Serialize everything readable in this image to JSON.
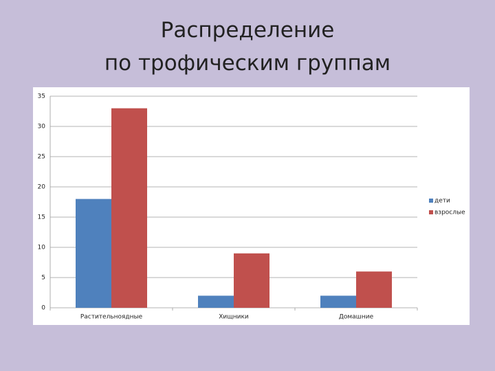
{
  "chart_data": {
    "type": "bar",
    "title": "Распределение\nпо трофическим группам",
    "categories": [
      "Растительноядные",
      "Хищники",
      "Домашние"
    ],
    "series": [
      {
        "name": "дети",
        "color": "#4f81bd",
        "values": [
          18,
          2,
          2
        ]
      },
      {
        "name": "взрослые",
        "color": "#c0504d",
        "values": [
          33,
          9,
          6
        ]
      }
    ],
    "ylim": [
      0,
      35
    ],
    "yticks": [
      0,
      5,
      10,
      15,
      20,
      25,
      30,
      35
    ],
    "grid": true,
    "legend": "right"
  }
}
